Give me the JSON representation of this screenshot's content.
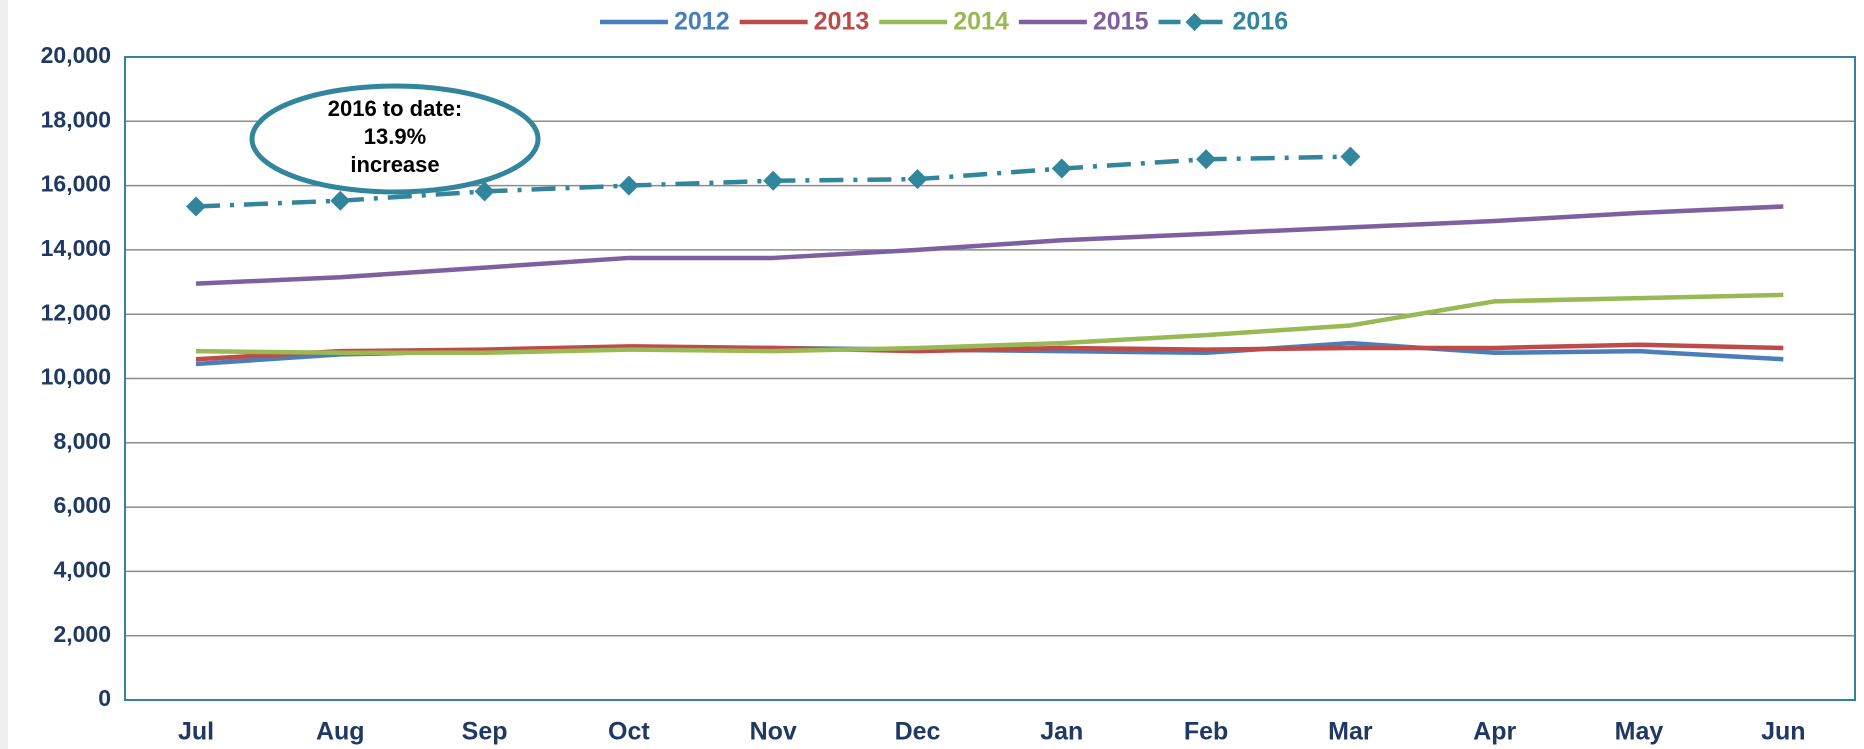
{
  "chart_data": {
    "type": "line",
    "categories": [
      "Jul",
      "Aug",
      "Sep",
      "Oct",
      "Nov",
      "Dec",
      "Jan",
      "Feb",
      "Mar",
      "Apr",
      "May",
      "Jun"
    ],
    "series": [
      {
        "name": "2012",
        "color": "#4a7ebb",
        "values": [
          10450,
          10750,
          10850,
          10950,
          10950,
          10900,
          10850,
          10800,
          11100,
          10800,
          10850,
          10600
        ]
      },
      {
        "name": "2013",
        "color": "#be4b48",
        "values": [
          10600,
          10850,
          10900,
          11000,
          10950,
          10850,
          10950,
          10900,
          10950,
          10950,
          11050,
          10950
        ]
      },
      {
        "name": "2014",
        "color": "#98b954",
        "values": [
          10850,
          10800,
          10800,
          10900,
          10850,
          10950,
          11100,
          11350,
          11650,
          12400,
          12500,
          12600
        ]
      },
      {
        "name": "2015",
        "color": "#7d60a0",
        "values": [
          12950,
          13150,
          13450,
          13750,
          13750,
          14000,
          14300,
          14500,
          14700,
          14900,
          15150,
          15350
        ]
      },
      {
        "name": "2016",
        "color": "#31859c",
        "dashed": true,
        "marker": "diamond",
        "values": [
          15350,
          15530,
          15820,
          16000,
          16150,
          16200,
          16530,
          16820,
          16900,
          null,
          null,
          null
        ]
      }
    ],
    "ylim": [
      0,
      20000
    ],
    "yticks": [
      0,
      {
        "value": 2000,
        "label": "2,000"
      },
      {
        "value": 4000,
        "label": "4,000"
      },
      {
        "value": 6000,
        "label": "6,000"
      },
      {
        "value": 8000,
        "label": "8,000"
      },
      {
        "value": 10000,
        "label": "10,000"
      },
      {
        "value": 12000,
        "label": "12,000"
      },
      {
        "value": 14000,
        "label": "14,000"
      },
      {
        "value": 16000,
        "label": "16,000"
      },
      {
        "value": 18000,
        "label": "18,000"
      },
      {
        "value": 20000,
        "label": "20,000"
      }
    ],
    "grid": true,
    "legend": "top",
    "annotation": [
      "2016 to date:",
      "13.9%",
      "increase"
    ]
  }
}
